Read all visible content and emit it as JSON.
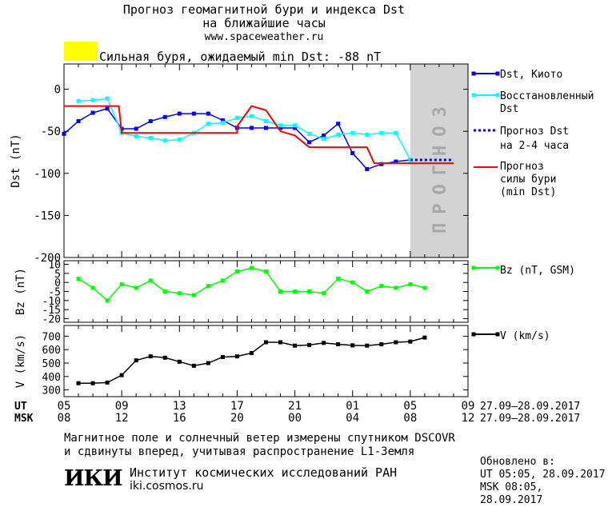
{
  "header": {
    "title_line1": "Прогноз геомагнитной бури и индекса Dst",
    "title_line2": "на ближайшие часы",
    "site": "www.spaceweather.ru"
  },
  "alert": {
    "color": "#ffff00",
    "text": "Сильная буря, ожидаемый min Dst: -88 nT"
  },
  "forecast_label": "ПРОГНОЗ",
  "time_axis": {
    "ut_label": "UT",
    "msk_label": "MSK",
    "ut_ticks": [
      "05",
      "09",
      "13",
      "17",
      "21",
      "01",
      "05",
      "09"
    ],
    "msk_ticks": [
      "08",
      "12",
      "16",
      "20",
      "00",
      "04",
      "08",
      "12"
    ],
    "date_range": "27.09–28.09.2017"
  },
  "chart_data": [
    {
      "type": "line",
      "ylabel": "Dst (nT)",
      "ylim": [
        -200,
        30
      ],
      "yticks": [
        0,
        -50,
        -100,
        -150,
        -200
      ],
      "x_unit": "hours from 05 UT 27.09.2017",
      "forecast_shade_x": [
        24,
        28
      ],
      "series": [
        {
          "name": "Dst, Киото",
          "color": "#0000ff",
          "x": [
            0,
            1,
            2,
            3,
            4,
            5,
            6,
            7,
            8,
            9,
            10,
            11,
            12,
            13,
            14,
            15,
            16,
            17,
            18,
            19,
            20,
            21,
            22,
            23,
            24
          ],
          "y": [
            -53,
            -38,
            -28,
            -23,
            -47,
            -47,
            -38,
            -33,
            -29,
            -29,
            -29,
            -37,
            -46,
            -46,
            -46,
            -46,
            -46,
            -63,
            -55,
            -41,
            -76,
            -95,
            -89,
            -86,
            -84
          ]
        },
        {
          "name": "Восстановленный Dst",
          "color": "#00ffff",
          "x": [
            1,
            2,
            3,
            4,
            5,
            6,
            7,
            8,
            9,
            10,
            11,
            12,
            13,
            14,
            15,
            16,
            17,
            18,
            19,
            20,
            21,
            22,
            23,
            24
          ],
          "y": [
            -14,
            -13,
            -11,
            -52,
            -56,
            -58,
            -61,
            -60,
            -52,
            -41,
            -40,
            -34,
            -32,
            -38,
            -43,
            -43,
            -53,
            -59,
            -54,
            -52,
            -54,
            -52,
            -52,
            -84
          ]
        },
        {
          "name": "Прогноз Dst на 2-4 часа",
          "color": "#0000ff",
          "dashed": true,
          "x": [
            24,
            25,
            26,
            27
          ],
          "y": [
            -84,
            -84,
            -84,
            -84
          ]
        },
        {
          "name": "Прогноз силы бури (min Dst)",
          "color": "#ff0000",
          "step": true,
          "x": [
            0,
            3,
            3.8,
            4,
            12,
            12,
            13,
            14,
            15,
            16,
            17,
            17.5,
            21,
            21.5,
            24,
            27
          ],
          "y": [
            -20,
            -20,
            -20,
            -52,
            -52,
            -44,
            -20,
            -25,
            -50,
            -55,
            -69,
            -69,
            -69,
            -88,
            -88,
            -88
          ]
        }
      ]
    },
    {
      "type": "line",
      "ylabel": "Bz (nT)",
      "ylim": [
        -22,
        12
      ],
      "yticks": [
        10,
        5,
        0,
        -5,
        -10,
        -15,
        -20
      ],
      "series": [
        {
          "name": "Bz (nT, GSM)",
          "color": "#00ff00",
          "x": [
            1,
            2,
            3,
            4,
            5,
            6,
            7,
            8,
            9,
            10,
            11,
            12,
            13,
            14,
            15,
            16,
            17,
            18,
            19,
            20,
            21,
            22,
            23,
            24,
            25
          ],
          "y": [
            2,
            -3,
            -10,
            -1,
            -3,
            1,
            -5,
            -6,
            -7,
            -2,
            1,
            6,
            8,
            6,
            -5,
            -5,
            -5,
            -6,
            2,
            0,
            -5,
            -2,
            -3,
            -1,
            -3
          ]
        }
      ]
    },
    {
      "type": "line",
      "ylabel": "V (km/s)",
      "ylim": [
        250,
        780
      ],
      "yticks": [
        300,
        400,
        500,
        600,
        700
      ],
      "series": [
        {
          "name": "V (km/s)",
          "color": "#000000",
          "x": [
            1,
            2,
            3,
            4,
            5,
            6,
            7,
            8,
            9,
            10,
            11,
            12,
            13,
            14,
            15,
            16,
            17,
            18,
            19,
            20,
            21,
            22,
            23,
            24,
            25
          ],
          "y": [
            350,
            350,
            355,
            410,
            520,
            550,
            540,
            510,
            480,
            500,
            545,
            550,
            575,
            655,
            655,
            630,
            635,
            650,
            640,
            632,
            630,
            640,
            655,
            660,
            690
          ]
        }
      ]
    }
  ],
  "legend": {
    "dst": "Dst, Киото",
    "rest1": "Восстановленный",
    "rest2": "Dst",
    "fc1": "Прогноз Dst",
    "fc2": "на 2-4 часа",
    "storm1": "Прогноз",
    "storm2": "силы бури",
    "storm3": "(min Dst)",
    "bz": "Bz (nT, GSM)",
    "v": "V (km/s)"
  },
  "footer": {
    "line1": "Магнитное поле и солнечный ветер измерены спутником DSCOVR",
    "line2": "и сдвинуты вперед, учитывая распространение L1-Земля",
    "logo": "ИКИ",
    "org": "Институт космических исследований РАН",
    "site": "iki.cosmos.ru",
    "updated_label": "Обновлено в:",
    "ut_line": "UT  05:05, 28.09.2017",
    "msk_line": "MSK 08:05, 28.09.2017"
  }
}
